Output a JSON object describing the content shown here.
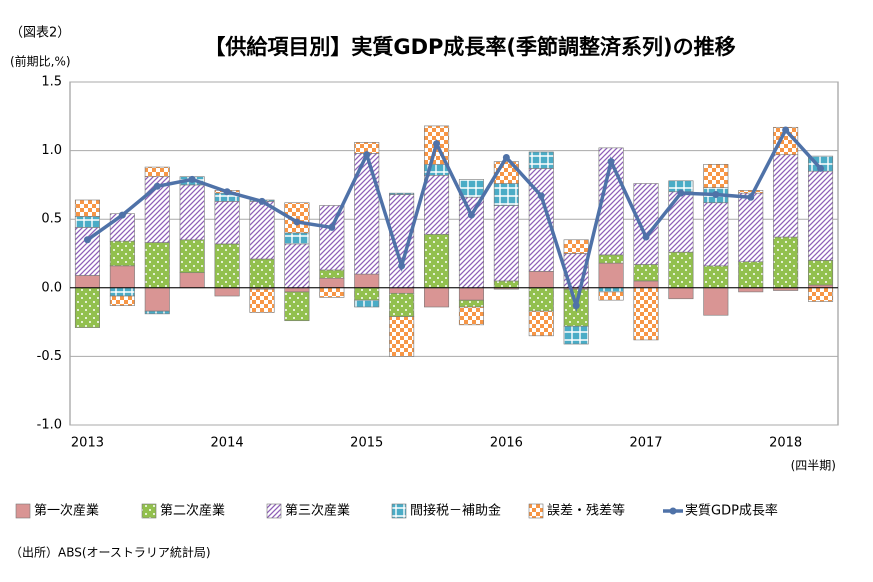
{
  "figure_label": "（図表2）",
  "chart_data": {
    "type": "bar",
    "title": "【供給項目別】実質GDP成長率(季節調整済系列)の推移",
    "y_label": "(前期比,%)",
    "x_label": "(四半期)",
    "source": "（出所）ABS(オーストラリア統計局)",
    "categories": [
      "2013",
      null,
      null,
      null,
      "2014",
      null,
      null,
      null,
      "2015",
      null,
      null,
      null,
      "2016",
      null,
      null,
      null,
      "2017",
      null,
      null,
      null,
      "2018",
      null
    ],
    "ylim": [
      -1.0,
      1.5
    ],
    "yticks": [
      {
        "value": -1.0,
        "label": "-1.0"
      },
      -0.5,
      {
        "value": 0.0,
        "label": "0.0"
      },
      0.5,
      {
        "value": 1.0,
        "label": "1.0"
      },
      1.5
    ],
    "grid": true,
    "series": [
      {
        "name": "第一次産業",
        "color": "#d99594",
        "values": [
          0.09,
          0.16,
          -0.17,
          0.11,
          -0.06,
          -0.01,
          -0.03,
          0.07,
          0.1,
          -0.04,
          -0.14,
          -0.09,
          -0.01,
          0.12,
          -0.01,
          0.18,
          0.05,
          -0.08,
          -0.2,
          -0.03,
          -0.02,
          0.02
        ]
      },
      {
        "name": "第二次産業",
        "color": "#92c04e",
        "values": [
          -0.29,
          0.18,
          0.33,
          0.24,
          0.32,
          0.21,
          -0.21,
          0.06,
          -0.09,
          -0.17,
          0.39,
          -0.05,
          0.05,
          -0.17,
          -0.27,
          0.06,
          0.12,
          0.26,
          0.16,
          0.19,
          0.37,
          0.18
        ]
      },
      {
        "name": "第三次産業",
        "color": "#8e5fb8",
        "values": [
          0.35,
          0.2,
          0.48,
          0.4,
          0.31,
          0.42,
          0.32,
          0.47,
          0.88,
          0.68,
          0.43,
          0.66,
          0.55,
          0.75,
          0.25,
          0.78,
          0.59,
          0.44,
          0.46,
          0.5,
          0.6,
          0.65
        ]
      },
      {
        "name": "間接税－補助金",
        "color": "#4bacc6",
        "values": [
          0.08,
          -0.06,
          -0.02,
          0.06,
          0.06,
          0.01,
          0.08,
          0.0,
          -0.05,
          0.01,
          0.08,
          0.13,
          0.16,
          0.12,
          -0.13,
          -0.03,
          0.0,
          0.08,
          0.11,
          0.0,
          0.0,
          0.11
        ]
      },
      {
        "name": "誤差・残差等",
        "color": "#f79646",
        "values": [
          0.12,
          -0.07,
          0.07,
          0.0,
          0.02,
          -0.17,
          0.22,
          -0.07,
          0.08,
          -0.29,
          0.28,
          -0.13,
          0.16,
          -0.18,
          0.1,
          -0.06,
          -0.38,
          0.0,
          0.17,
          0.02,
          0.2,
          -0.1
        ]
      },
      {
        "name": "実質GDP成長率",
        "color": "#4f72a8",
        "type": "line",
        "values": [
          0.35,
          0.53,
          0.74,
          0.79,
          0.7,
          0.63,
          0.48,
          0.44,
          0.97,
          0.16,
          1.05,
          0.53,
          0.95,
          0.67,
          -0.13,
          0.92,
          0.37,
          0.69,
          0.68,
          0.66,
          1.15,
          0.87
        ]
      }
    ]
  }
}
